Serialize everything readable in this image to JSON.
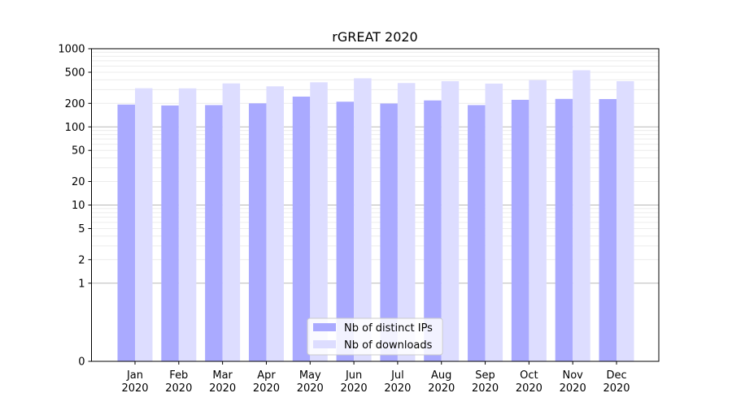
{
  "chart_data": {
    "type": "bar",
    "title": "rGREAT 2020",
    "xlabel": "",
    "ylabel": "",
    "yscale": "symlog",
    "ylim": [
      0,
      1000
    ],
    "yticks": [
      0,
      1,
      2,
      5,
      10,
      20,
      50,
      100,
      200,
      500,
      1000
    ],
    "yticks_text": [
      "0",
      "1",
      "2",
      "5",
      "10",
      "20",
      "50",
      "100",
      "200",
      "500",
      "1000"
    ],
    "grid": true,
    "legend_position": "bottom-center",
    "categories": [
      {
        "month": "Jan",
        "year": "2020"
      },
      {
        "month": "Feb",
        "year": "2020"
      },
      {
        "month": "Mar",
        "year": "2020"
      },
      {
        "month": "Apr",
        "year": "2020"
      },
      {
        "month": "May",
        "year": "2020"
      },
      {
        "month": "Jun",
        "year": "2020"
      },
      {
        "month": "Jul",
        "year": "2020"
      },
      {
        "month": "Aug",
        "year": "2020"
      },
      {
        "month": "Sep",
        "year": "2020"
      },
      {
        "month": "Oct",
        "year": "2020"
      },
      {
        "month": "Nov",
        "year": "2020"
      },
      {
        "month": "Dec",
        "year": "2020"
      }
    ],
    "series": [
      {
        "name": "Nb of distinct IPs",
        "color": "#aaaaff",
        "values": [
          193,
          188,
          190,
          200,
          244,
          210,
          199,
          218,
          190,
          222,
          228,
          227
        ]
      },
      {
        "name": "Nb of downloads",
        "color": "#ddddff",
        "values": [
          312,
          311,
          360,
          330,
          372,
          418,
          364,
          384,
          358,
          396,
          530,
          384
        ]
      }
    ]
  }
}
